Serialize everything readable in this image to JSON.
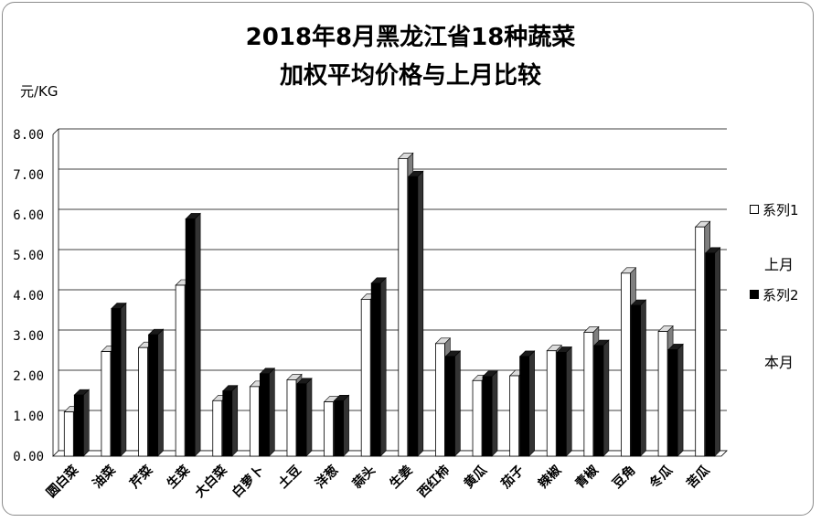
{
  "chart_data": {
    "type": "bar",
    "title_line1": "2018年8月黑龙江省18种蔬菜",
    "title_line2": "加权平均价格与上月比较",
    "ylabel": "元/KG",
    "ylim": [
      0,
      8
    ],
    "yticks": [
      "0.00",
      "1.00",
      "2.00",
      "3.00",
      "4.00",
      "5.00",
      "6.00",
      "7.00",
      "8.00"
    ],
    "grid": true,
    "legend_position": "right",
    "categories": [
      "圆白菜",
      "油菜",
      "芹菜",
      "生菜",
      "大白菜",
      "白萝卜",
      "土豆",
      "洋葱",
      "蒜头",
      "生姜",
      "西红柿",
      "黄瓜",
      "茄子",
      "辣椒",
      "青椒",
      "豆角",
      "冬瓜",
      "苦瓜"
    ],
    "series": [
      {
        "name": "系列1",
        "color": "#ffffff",
        "values": [
          1.1,
          2.6,
          2.7,
          4.25,
          1.38,
          1.73,
          1.9,
          1.35,
          3.9,
          7.4,
          2.8,
          1.88,
          2.0,
          2.62,
          3.08,
          4.55,
          3.1,
          5.7
        ]
      },
      {
        "name": "系列2",
        "color": "#000000",
        "values": [
          1.52,
          3.67,
          3.02,
          5.9,
          1.62,
          2.05,
          1.8,
          1.38,
          4.3,
          6.95,
          2.48,
          1.98,
          2.48,
          2.58,
          2.75,
          3.75,
          2.65,
          5.05
        ]
      }
    ],
    "legend_notes": [
      "上月",
      "本月"
    ]
  }
}
